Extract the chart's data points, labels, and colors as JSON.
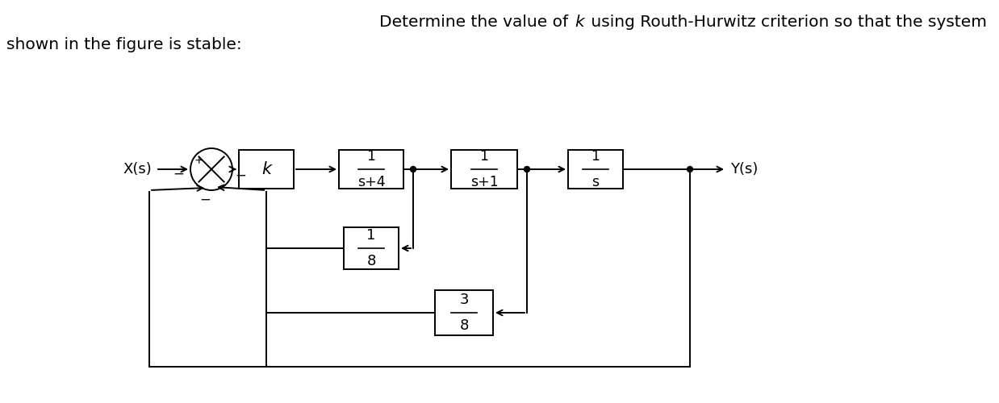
{
  "title_pre": "Determine the value of ",
  "title_k": "k",
  "title_post": " using Routh-Hurwitz criterion so that the system",
  "title_line2": "shown in the figure is stable:",
  "input_label": "X(s)",
  "output_label": "Y(s)",
  "block_k": "k",
  "block_b1_num": "1",
  "block_b1_den": "s+4",
  "block_b2_num": "1",
  "block_b2_den": "s+1",
  "block_b3_num": "1",
  "block_b3_den": "s",
  "block_fb1_num": "1",
  "block_fb1_den": "8",
  "block_fb2_num": "3",
  "block_fb2_den": "8",
  "plus_sign": "+",
  "minus_sign": "−",
  "background_color": "#ffffff",
  "line_color": "#000000",
  "text_color": "#000000",
  "figsize": [
    12.38,
    5.0
  ],
  "dpi": 100
}
